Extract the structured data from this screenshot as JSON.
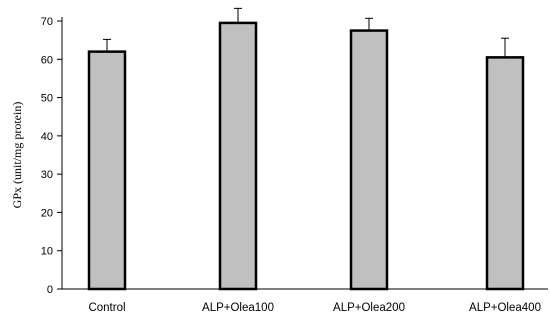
{
  "chart_data": {
    "type": "bar",
    "categories": [
      "Control",
      "ALP+Olea100",
      "ALP+Olea200",
      "ALP+Olea400"
    ],
    "values": [
      62,
      69.5,
      67.5,
      60.5
    ],
    "error": [
      3.2,
      3.8,
      3.2,
      5.0
    ],
    "xlabel": "",
    "ylabel": "GPx  (unit/mg protein)",
    "ylim": [
      0,
      70
    ],
    "yticks": [
      0,
      10,
      20,
      30,
      40,
      50,
      60,
      70
    ],
    "grid": false,
    "colors": {
      "bar_fill": "#c0c0c0",
      "bar_edge": "#000000"
    }
  }
}
